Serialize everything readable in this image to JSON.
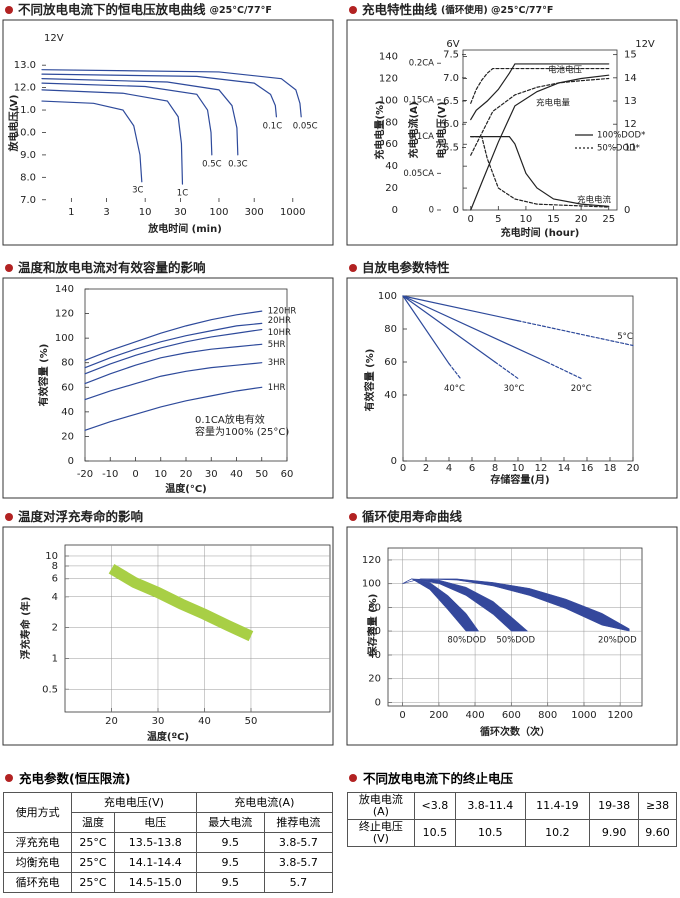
{
  "chart_data": [
    {
      "type": "line",
      "title": "不同放电电流下的恒电压放电曲线",
      "subtitle": "@25°C/77°F",
      "xlabel": "放电时间 (min)",
      "ylabel": "放电电压(V)",
      "annotations": [
        "12V"
      ],
      "xlog": true,
      "xlim": [
        0.4,
        3000
      ],
      "xticks": [
        1,
        3,
        10,
        30,
        100,
        300,
        1000
      ],
      "ylim": [
        6.9,
        13.9
      ],
      "yticks": [
        {
          "value": 7,
          "label": "7.0"
        },
        {
          "value": 8,
          "label": "8.0"
        },
        {
          "value": 9,
          "label": "9.0"
        },
        {
          "value": 10,
          "label": "10.0"
        },
        {
          "value": 11,
          "label": "11.0"
        },
        {
          "value": 12,
          "label": "12.0"
        },
        {
          "value": 13,
          "label": "13.0"
        }
      ],
      "series": [
        {
          "name": "3C",
          "color": "#2e4a9b",
          "x": [
            0.4,
            2,
            5,
            7,
            8.5,
            9
          ],
          "values": [
            11.4,
            11.3,
            11.0,
            10.3,
            9.0,
            7.8
          ]
        },
        {
          "name": "1C",
          "color": "#2e4a9b",
          "x": [
            0.4,
            5,
            20,
            28,
            31,
            32
          ],
          "values": [
            11.9,
            11.75,
            11.4,
            10.7,
            9.5,
            7.7
          ]
        },
        {
          "name": "0.5C",
          "color": "#2e4a9b",
          "x": [
            0.4,
            10,
            50,
            70,
            78,
            80
          ],
          "values": [
            12.2,
            12.05,
            11.7,
            11.0,
            10.0,
            9.0
          ]
        },
        {
          "name": "0.3C",
          "color": "#2e4a9b",
          "x": [
            0.4,
            20,
            100,
            150,
            175,
            180
          ],
          "values": [
            12.4,
            12.25,
            11.9,
            11.2,
            10.2,
            9.0
          ]
        },
        {
          "name": "0.1C",
          "color": "#2e4a9b",
          "x": [
            0.4,
            50,
            300,
            500,
            580,
            600
          ],
          "values": [
            12.6,
            12.5,
            12.2,
            11.7,
            11.2,
            10.7
          ]
        },
        {
          "name": "0.05C",
          "color": "#2e4a9b",
          "x": [
            0.4,
            100,
            700,
            1100,
            1250,
            1300
          ],
          "values": [
            12.8,
            12.7,
            12.4,
            11.9,
            11.3,
            10.7
          ]
        }
      ]
    },
    {
      "type": "line",
      "title": "充电特性曲线",
      "subtitle": "(循环使用) @25°C/77°F",
      "xlabel": "充电时间 (hour)",
      "ylabel": "充电电量(%)",
      "xlim": [
        -1.4,
        26.5
      ],
      "xticks": [
        0,
        5,
        10,
        15,
        20,
        25
      ],
      "ylim": [
        0,
        146
      ],
      "yticks": [
        0,
        20,
        40,
        60,
        80,
        100,
        120,
        140
      ],
      "y2lim": [
        8.3,
        15.2
      ],
      "y2ticks": [
        11,
        12,
        13,
        14,
        15
      ],
      "y2title": "12V",
      "y3lim": [
        4.15,
        7.6
      ],
      "y3ticks": [
        5.5,
        {
          "value": 6,
          "label": "6.0"
        },
        6.5,
        {
          "value": 7,
          "label": "7.0"
        },
        7.5
      ],
      "y3title": "6V",
      "y3label": "电池电压(V)",
      "y4lim": [
        0,
        0.218
      ],
      "y4ticks": [
        0,
        {
          "value": 0.05,
          "label": "0.05CA"
        },
        {
          "value": 0.1,
          "label": "0.1CA"
        },
        {
          "value": 0.15,
          "label": "0.15CA"
        },
        {
          "value": 0.2,
          "label": "0.2CA"
        }
      ],
      "y4label": "充电电流(A)",
      "axis_break_label": "0",
      "legend": [
        {
          "label": "100%DOD*"
        },
        {
          "label": "50%DOD*",
          "dash": true
        }
      ],
      "series": [
        {
          "name": "电池电压",
          "color": "#222",
          "axis": "y2",
          "x": [
            0,
            1,
            3,
            5,
            7,
            8,
            25
          ],
          "values": [
            12.2,
            12.6,
            13.0,
            13.5,
            14.2,
            14.6,
            14.6
          ]
        },
        {
          "color": "#222",
          "axis": "y2",
          "dash": true,
          "x": [
            0,
            1,
            2,
            3,
            4,
            5,
            25
          ],
          "values": [
            12.9,
            13.5,
            13.9,
            14.2,
            14.4,
            14.4,
            14.4
          ]
        },
        {
          "name": "充电电量",
          "color": "#222",
          "x": [
            0,
            2,
            5,
            8,
            12,
            16,
            20,
            25
          ],
          "values": [
            0,
            25,
            62,
            95,
            108,
            116,
            120,
            123
          ]
        },
        {
          "color": "#222",
          "dash": true,
          "x": [
            0,
            4,
            8,
            12,
            16,
            20,
            25
          ],
          "values": [
            50,
            90,
            105,
            112,
            116,
            118,
            120
          ]
        },
        {
          "name": "充电电流",
          "color": "#222",
          "axis": "y4",
          "x": [
            0,
            7,
            8,
            10,
            12,
            15,
            20,
            25
          ],
          "values": [
            0.1,
            0.1,
            0.09,
            0.05,
            0.03,
            0.015,
            0.008,
            0.005
          ]
        },
        {
          "color": "#222",
          "axis": "y4",
          "dash": true,
          "x": [
            0,
            2,
            3,
            5,
            8,
            12,
            25
          ],
          "values": [
            0.1,
            0.1,
            0.07,
            0.03,
            0.015,
            0.008,
            0.004
          ]
        }
      ]
    },
    {
      "type": "line",
      "title": "温度和放电电流对有效容量的影响",
      "xlabel": "温度(°C)",
      "ylabel": "有效容量 (%)",
      "annotations": [
        "0.1CA放电有效",
        "容量为100% (25°C)"
      ],
      "xlim": [
        -20,
        60
      ],
      "xticks": [
        -20,
        -10,
        0,
        10,
        20,
        30,
        40,
        50,
        60
      ],
      "ylim": [
        0,
        140
      ],
      "yticks": [
        0,
        20,
        40,
        60,
        80,
        100,
        120,
        140
      ],
      "x": [
        -20,
        -10,
        0,
        10,
        20,
        30,
        40,
        50
      ],
      "series": [
        {
          "name": "120HR",
          "color": "#2e4a9b",
          "values": [
            82,
            90,
            97,
            104,
            110,
            115,
            119,
            122
          ]
        },
        {
          "name": "20HR",
          "color": "#2e4a9b",
          "values": [
            76,
            84,
            91,
            97,
            102,
            106,
            110,
            112
          ]
        },
        {
          "name": "10HR",
          "color": "#2e4a9b",
          "values": [
            71,
            79,
            86,
            92,
            97,
            101,
            104,
            107
          ]
        },
        {
          "name": "5HR",
          "color": "#2e4a9b",
          "values": [
            63,
            71,
            78,
            84,
            88,
            91,
            93,
            95
          ]
        },
        {
          "name": "3HR",
          "color": "#2e4a9b",
          "values": [
            50,
            57,
            63,
            69,
            73,
            76,
            78,
            80
          ]
        },
        {
          "name": "1HR",
          "color": "#2e4a9b",
          "values": [
            25,
            32,
            38,
            44,
            49,
            53,
            57,
            60
          ]
        }
      ]
    },
    {
      "type": "line",
      "title": "自放电参数特性",
      "xlabel": "存储容量(月)",
      "ylabel": "有效容量 (%)",
      "dashed_tail": true,
      "xlim": [
        0,
        20
      ],
      "xticks": [
        0,
        2,
        4,
        6,
        8,
        10,
        12,
        14,
        16,
        18,
        20
      ],
      "ylim": [
        0,
        100
      ],
      "yticks": [
        0,
        40,
        60,
        80,
        100
      ],
      "series": [
        {
          "name": "5°C",
          "color": "#2e4a9b",
          "x": [
            0,
            10,
            20
          ],
          "values": [
            100,
            85,
            70
          ]
        },
        {
          "name": "40°C",
          "color": "#2e4a9b",
          "x": [
            0,
            4,
            5
          ],
          "values": [
            100,
            59,
            50
          ]
        },
        {
          "name": "30°C",
          "color": "#2e4a9b",
          "x": [
            0,
            8,
            10
          ],
          "values": [
            100,
            60,
            50
          ]
        },
        {
          "name": "20°C",
          "color": "#2e4a9b",
          "x": [
            0,
            12.5,
            15.5
          ],
          "values": [
            100,
            60,
            50
          ]
        }
      ]
    },
    {
      "type": "line",
      "title": "温度对浮充寿命的影响",
      "xlabel": "温度(ºC)",
      "ylabel": "浮充寿命 (年)",
      "grid": true,
      "ylog": true,
      "xlim": [
        10,
        67
      ],
      "xticks": [
        20,
        30,
        40,
        50
      ],
      "ylim": [
        0.3,
        12.8
      ],
      "yticks": [
        0.5,
        1,
        2,
        4,
        6,
        8,
        10
      ],
      "series": [
        {
          "color": "#a8cf45",
          "x": [
            20,
            25,
            30,
            35,
            40,
            45,
            50
          ],
          "values": [
            7.5,
            5.5,
            4.4,
            3.4,
            2.7,
            2.1,
            1.65
          ]
        }
      ]
    },
    {
      "type": "area",
      "title": "循环使用寿命曲线",
      "xlabel": "循环次数（次）",
      "ylabel": "保存容量 (%)",
      "grid": true,
      "xlim": [
        -80,
        1320
      ],
      "xticks": [
        0,
        200,
        400,
        600,
        800,
        1000,
        1200
      ],
      "ylim": [
        -3,
        130
      ],
      "yticks": [
        0,
        20,
        40,
        60,
        80,
        100,
        120
      ],
      "series": [
        {
          "name": "80%DOD",
          "color": "#34489c",
          "x": [
            0,
            50,
            150,
            250,
            350,
            420
          ],
          "upper": [
            100,
            104,
            101,
            90,
            75,
            60
          ],
          "lower": [
            100,
            104,
            95,
            78,
            60,
            60
          ]
        },
        {
          "name": "50%DOD",
          "color": "#34489c",
          "x": [
            0,
            50,
            200,
            350,
            500,
            600,
            690
          ],
          "upper": [
            100,
            104,
            103,
            97,
            85,
            72,
            60
          ],
          "lower": [
            100,
            104,
            100,
            90,
            74,
            60,
            60
          ]
        },
        {
          "name": "20%DOD",
          "color": "#34489c",
          "x": [
            0,
            100,
            300,
            500,
            700,
            900,
            1100,
            1250
          ],
          "upper": [
            100,
            104,
            104,
            101,
            96,
            87,
            75,
            62
          ],
          "lower": [
            100,
            104,
            103,
            98,
            90,
            79,
            65,
            60
          ]
        }
      ]
    }
  ],
  "tables": [
    {
      "title": "充电参数(恒压限流)",
      "header": [
        [
          "使用方式",
          "充电电压(V)",
          "充电电流(A)"
        ],
        [
          "温度",
          "电压",
          "最大电流",
          "推荐电流"
        ]
      ],
      "rows": [
        [
          "浮充充电",
          "25°C",
          "13.5-13.8",
          "9.5",
          "3.8-5.7"
        ],
        [
          "均衡充电",
          "25°C",
          "14.1-14.4",
          "9.5",
          "3.8-5.7"
        ],
        [
          "循环充电",
          "25°C",
          "14.5-15.0",
          "9.5",
          "5.7"
        ]
      ]
    },
    {
      "title": "不同放电电流下的终止电压",
      "rows": [
        [
          "放电电流\n(A)",
          "<3.8",
          "3.8-11.4",
          "11.4-19",
          "19-38",
          "≥38"
        ],
        [
          "终止电压\n(V)",
          "10.5",
          "10.5",
          "10.2",
          "9.90",
          "9.60"
        ]
      ]
    }
  ]
}
